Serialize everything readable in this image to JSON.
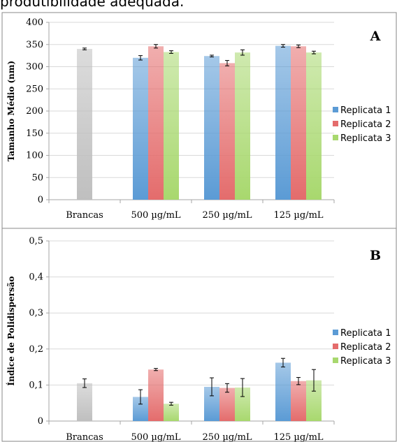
{
  "caption": "produtibilidade adequada.",
  "colors": {
    "replicata_1": "#5b9bd5",
    "replicata_2": "#e46c6c",
    "replicata_3": "#a8d86e",
    "brancas": "#bfbfbf",
    "grid": "#d9d9d9",
    "frame": "#888888"
  },
  "chart_data": [
    {
      "type": "bar",
      "panel_label": "A",
      "ylabel": "Tamanho Médio (nm)",
      "ylim": [
        0,
        400
      ],
      "yticks": [
        "0",
        "50",
        "100",
        "150",
        "200",
        "250",
        "300",
        "350",
        "400"
      ],
      "categories": [
        "Brancas",
        "500 µg/mL",
        "250 µg/mL",
        "125 µg/mL"
      ],
      "brancas": {
        "value": 340,
        "error": 2
      },
      "series": [
        {
          "name": "Replicata 1",
          "values": [
            null,
            320,
            324,
            347
          ],
          "errors": [
            null,
            5,
            2,
            3
          ]
        },
        {
          "name": "Replicata 2",
          "values": [
            null,
            346,
            308,
            346
          ],
          "errors": [
            null,
            4,
            6,
            3
          ]
        },
        {
          "name": "Replicata 3",
          "values": [
            null,
            333,
            332,
            332
          ],
          "errors": [
            null,
            3,
            6,
            3
          ]
        }
      ],
      "legend": "right",
      "grid": true
    },
    {
      "type": "bar",
      "panel_label": "B",
      "ylabel": "Índice de Polidispersão",
      "ylim": [
        0,
        0.5
      ],
      "yticks": [
        "0",
        "0,1",
        "0,2",
        "0,3",
        "0,4",
        "0,5"
      ],
      "categories": [
        "Brancas",
        "500 µg/mL",
        "250 µg/mL",
        "125 µg/mL"
      ],
      "brancas": {
        "value": 0.105,
        "error": 0.012
      },
      "series": [
        {
          "name": "Replicata 1",
          "values": [
            null,
            0.067,
            0.095,
            0.162
          ],
          "errors": [
            null,
            0.02,
            0.025,
            0.012
          ]
        },
        {
          "name": "Replicata 2",
          "values": [
            null,
            0.143,
            0.092,
            0.111
          ],
          "errors": [
            null,
            0.003,
            0.012,
            0.01
          ]
        },
        {
          "name": "Replicata 3",
          "values": [
            null,
            0.048,
            0.093,
            0.113
          ],
          "errors": [
            null,
            0.004,
            0.025,
            0.03
          ]
        }
      ],
      "legend": "right",
      "grid": true
    }
  ]
}
